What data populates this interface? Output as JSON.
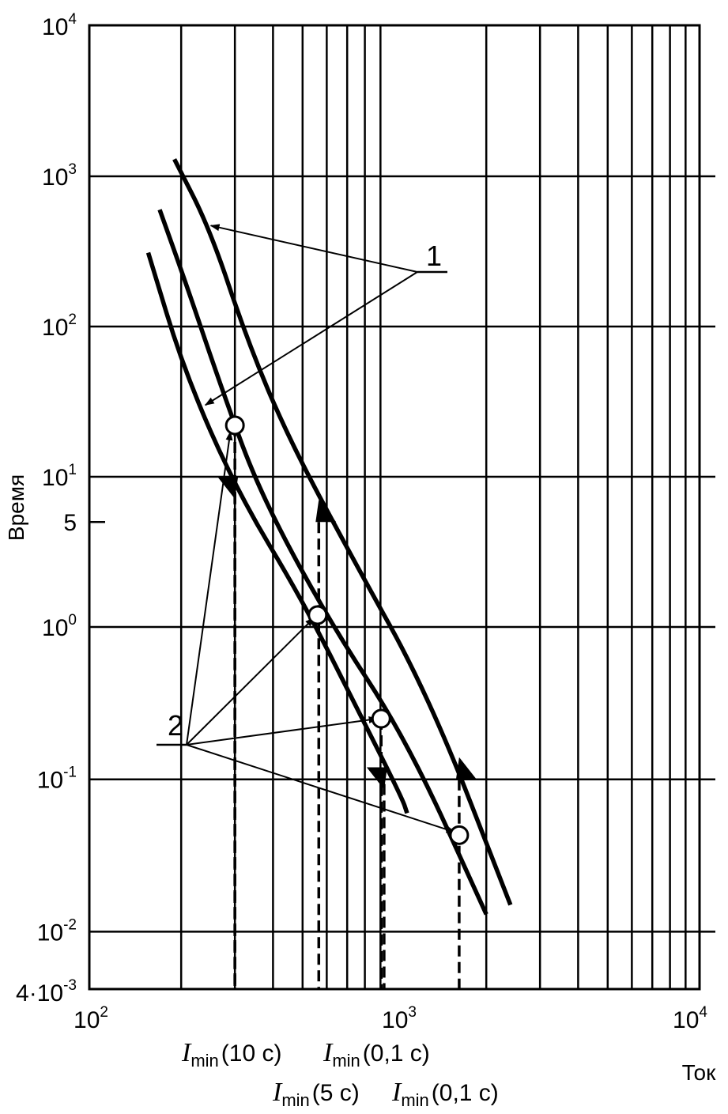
{
  "chart_data": {
    "type": "line",
    "xscale": "log",
    "yscale": "log",
    "xlim": [
      100,
      10000
    ],
    "ylim": [
      0.004,
      10000
    ],
    "grid": true,
    "xlabel": "Ток",
    "ylabel": "Время",
    "x_ticks": [
      {
        "value": 100,
        "base": "10",
        "exp": "2"
      },
      {
        "value": 1000,
        "base": "10",
        "exp": "3"
      },
      {
        "value": 10000,
        "base": "10",
        "exp": "4"
      }
    ],
    "y_ticks": [
      {
        "value": 10000,
        "base": "10",
        "exp": "4"
      },
      {
        "value": 1000,
        "base": "10",
        "exp": "3"
      },
      {
        "value": 100,
        "base": "10",
        "exp": "2"
      },
      {
        "value": 10,
        "base": "10",
        "exp": "1"
      },
      {
        "value": 5,
        "base": "5",
        "exp": ""
      },
      {
        "value": 1,
        "base": "10",
        "exp": "0"
      },
      {
        "value": 0.1,
        "base": "10",
        "exp": "-1"
      },
      {
        "value": 0.01,
        "base": "10",
        "exp": "-2"
      },
      {
        "value": 0.004,
        "base": "4·10",
        "exp": "-3"
      }
    ],
    "series": [
      {
        "points": [
          [
            156,
            310
          ],
          [
            205,
            50
          ],
          [
            305,
            8
          ],
          [
            500,
            1.5
          ],
          [
            750,
            0.3
          ],
          [
            1060,
            0.075
          ],
          [
            1100,
            0.06
          ]
        ]
      },
      {
        "points": [
          [
            170,
            600
          ],
          [
            210,
            180
          ],
          [
            270,
            40
          ],
          [
            360,
            8
          ],
          [
            610,
            1.1
          ],
          [
            1100,
            0.18
          ],
          [
            2000,
            0.013
          ]
        ]
      },
      {
        "points": [
          [
            190,
            1300
          ],
          [
            248,
            450
          ],
          [
            330,
            80
          ],
          [
            450,
            18
          ],
          [
            720,
            3
          ],
          [
            1300,
            0.35
          ],
          [
            2400,
            0.015
          ]
        ]
      }
    ],
    "markers": [
      {
        "x": 300,
        "y": 22
      },
      {
        "x": 560,
        "y": 1.2
      },
      {
        "x": 905,
        "y": 0.25
      },
      {
        "x": 1630,
        "y": 0.043
      }
    ],
    "drop_lines": [
      {
        "x": 300,
        "y_top": 22
      },
      {
        "x": 300,
        "y_top": 10
      },
      {
        "x": 565,
        "y_top": 5
      },
      {
        "x": 905,
        "y_top": 0.25
      },
      {
        "x": 925,
        "y_top": 0.12
      },
      {
        "x": 1630,
        "y_top": 0.1
      }
    ],
    "direction_arrows": [
      {
        "x": 300,
        "y": 10,
        "dir": "down"
      },
      {
        "x": 565,
        "y": 5,
        "dir": "up"
      },
      {
        "x": 925,
        "y": 0.12,
        "dir": "down"
      },
      {
        "x": 1630,
        "y": 0.1,
        "dir": "up"
      }
    ],
    "callouts": [
      {
        "label": "1",
        "targets": [
          [
            250,
            470
          ],
          [
            240,
            30
          ]
        ]
      },
      {
        "label": "2",
        "targets": [
          [
            290,
            20
          ],
          [
            545,
            1.15
          ],
          [
            880,
            0.25
          ],
          [
            1580,
            0.045
          ]
        ]
      }
    ],
    "imin_labels": [
      {
        "symbol": "I",
        "sub": "min",
        "arg": "(10 с)",
        "x": 300
      },
      {
        "symbol": "I",
        "sub": "min",
        "arg": "(0,1 с)",
        "x": 905
      },
      {
        "symbol": "I",
        "sub": "min",
        "arg": "(5 с)",
        "x": 565
      },
      {
        "symbol": "I",
        "sub": "min",
        "arg": "(0,1 с)",
        "x": 1630
      }
    ]
  }
}
